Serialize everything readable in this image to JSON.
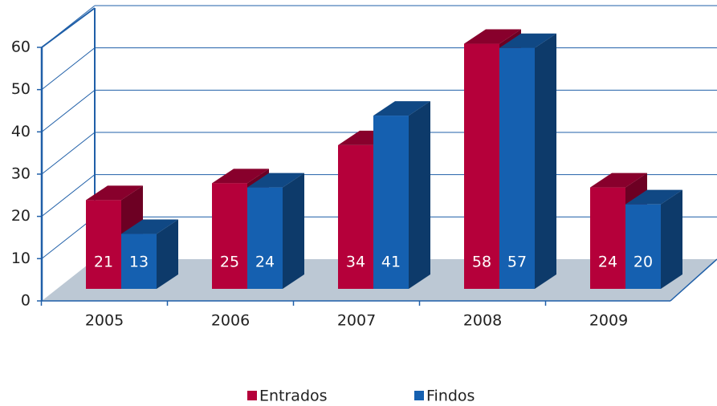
{
  "chart_data": {
    "type": "bar3d",
    "categories": [
      "2005",
      "2006",
      "2007",
      "2008",
      "2009"
    ],
    "series": [
      {
        "name": "Entrados",
        "color": "#b5003a",
        "values": [
          21,
          25,
          34,
          58,
          24
        ]
      },
      {
        "name": "Findos",
        "color": "#1560b0",
        "values": [
          13,
          24,
          41,
          57,
          20
        ]
      }
    ],
    "ylim": [
      0,
      60
    ],
    "yticks": [
      0,
      10,
      20,
      30,
      40,
      50,
      60
    ],
    "grid": true,
    "legend": "bottom"
  }
}
